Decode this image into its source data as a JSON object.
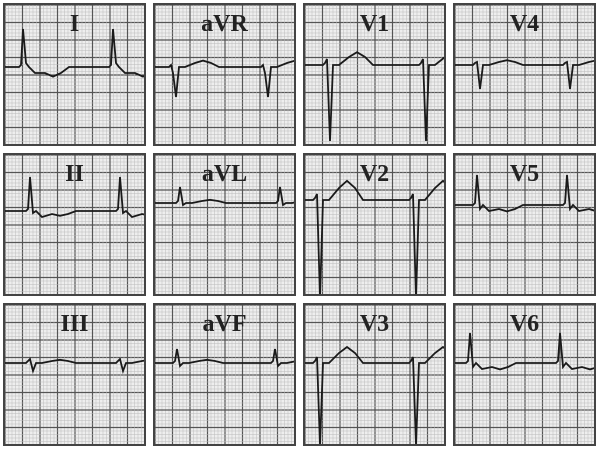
{
  "leads": [
    {
      "label": "I"
    },
    {
      "label": "aVR"
    },
    {
      "label": "V1"
    },
    {
      "label": "V4"
    },
    {
      "label": "II"
    },
    {
      "label": "aVL"
    },
    {
      "label": "V2"
    },
    {
      "label": "V5"
    },
    {
      "label": "III"
    },
    {
      "label": "aVF"
    },
    {
      "label": "V3"
    },
    {
      "label": "V6"
    }
  ],
  "colors": {
    "grid_minor": "#bbbbbb",
    "grid_major": "#555555",
    "trace": "#1a1a1a",
    "background": "#eeeeee"
  }
}
